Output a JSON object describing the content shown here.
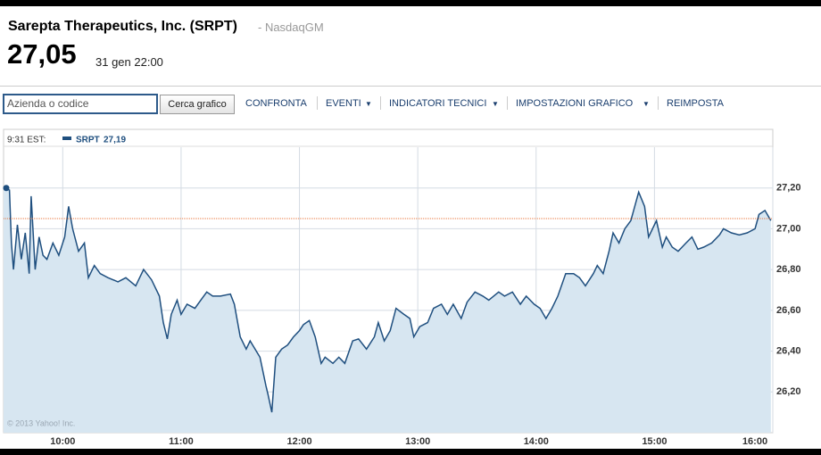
{
  "header": {
    "title": "Sarepta Therapeutics, Inc. (SRPT)",
    "exchange": "- NasdaqGM",
    "price": "27,05",
    "time": "31 gen 22:00"
  },
  "toolbar": {
    "search_placeholder": "Azienda o codice",
    "button": "Cerca grafico",
    "links": [
      "CONFRONTA",
      "EVENTI",
      "INDICATORI TECNICI",
      "IMPOSTAZIONI GRAFICO",
      "REIMPOSTA"
    ]
  },
  "chart_data": {
    "type": "line",
    "legend": {
      "time": "9:31 EST:",
      "value": "27,19"
    },
    "watermark": "© 2013 Yahoo! Inc.",
    "x": [
      "09:30",
      "09:33",
      "09:34",
      "09:35",
      "09:37",
      "09:39",
      "09:41",
      "09:43",
      "09:44",
      "09:46",
      "09:48",
      "09:50",
      "09:52",
      "09:55",
      "09:58",
      "10:01",
      "10:03",
      "10:05",
      "10:08",
      "10:11",
      "10:13",
      "10:16",
      "10:19",
      "10:23",
      "10:28",
      "10:32",
      "10:37",
      "10:41",
      "10:45",
      "10:49",
      "10:51",
      "10:53",
      "10:55",
      "10:58",
      "11:00",
      "11:03",
      "11:07",
      "11:10",
      "11:13",
      "11:16",
      "11:20",
      "11:25",
      "11:27",
      "11:30",
      "11:33",
      "11:35",
      "11:40",
      "11:43",
      "11:44",
      "11:46",
      "11:48",
      "11:51",
      "11:54",
      "11:57",
      "12:00",
      "12:02",
      "12:05",
      "12:08",
      "12:11",
      "12:13",
      "12:17",
      "12:20",
      "12:23",
      "12:27",
      "12:30",
      "12:34",
      "12:38",
      "12:40",
      "12:43",
      "12:46",
      "12:49",
      "12:53",
      "12:56",
      "12:58",
      "13:01",
      "13:05",
      "13:08",
      "13:12",
      "13:15",
      "13:18",
      "13:22",
      "13:25",
      "13:29",
      "13:33",
      "13:36",
      "13:41",
      "13:44",
      "13:48",
      "13:52",
      "13:55",
      "13:59",
      "14:02",
      "14:05",
      "14:08",
      "14:11",
      "14:15",
      "14:19",
      "14:22",
      "14:25",
      "14:29",
      "14:31",
      "14:34",
      "14:37",
      "14:39",
      "14:42",
      "14:45",
      "14:48",
      "14:52",
      "14:55",
      "14:57",
      "15:01",
      "15:04",
      "15:06",
      "15:09",
      "15:12",
      "15:16",
      "15:19",
      "15:22",
      "15:25",
      "15:29",
      "15:33",
      "15:35",
      "15:39",
      "15:43",
      "15:47",
      "15:51",
      "15:53",
      "15:56",
      "15:59"
    ],
    "series": [
      {
        "name": "SRPT",
        "color": "#1f4f7f",
        "fill": "#d7e6f1",
        "values": [
          27.2,
          27.19,
          26.93,
          26.8,
          27.02,
          26.85,
          26.98,
          26.78,
          27.16,
          26.8,
          26.96,
          26.87,
          26.85,
          26.93,
          26.87,
          26.96,
          27.11,
          27.0,
          26.89,
          26.93,
          26.76,
          26.82,
          26.78,
          26.76,
          26.74,
          26.76,
          26.72,
          26.8,
          26.75,
          26.67,
          26.54,
          26.46,
          26.58,
          26.65,
          26.58,
          26.63,
          26.61,
          26.65,
          26.69,
          26.67,
          26.67,
          26.68,
          26.63,
          26.47,
          26.41,
          26.45,
          26.37,
          26.23,
          26.19,
          26.1,
          26.37,
          26.41,
          26.43,
          26.47,
          26.5,
          26.53,
          26.55,
          26.47,
          26.34,
          26.37,
          26.34,
          26.37,
          26.34,
          26.45,
          26.46,
          26.41,
          26.47,
          26.54,
          26.45,
          26.5,
          26.61,
          26.58,
          26.56,
          26.47,
          26.52,
          26.54,
          26.61,
          26.63,
          26.58,
          26.63,
          26.56,
          26.64,
          26.69,
          26.67,
          26.65,
          26.69,
          26.67,
          26.69,
          26.63,
          26.67,
          26.63,
          26.61,
          26.56,
          26.61,
          26.67,
          26.78,
          26.78,
          26.76,
          26.72,
          26.78,
          26.82,
          26.78,
          26.89,
          26.98,
          26.93,
          27.0,
          27.04,
          27.18,
          27.11,
          26.96,
          27.04,
          26.91,
          26.96,
          26.91,
          26.89,
          26.93,
          26.96,
          26.9,
          26.91,
          26.93,
          26.97,
          27.0,
          26.98,
          26.97,
          26.98,
          27.0,
          27.07,
          27.09,
          27.04
        ]
      }
    ],
    "ref_line": 27.05,
    "ref_color": "#e8743b",
    "xlim": [
      "09:30",
      "16:00"
    ],
    "xticks": [
      "10:00",
      "11:00",
      "12:00",
      "13:00",
      "14:00",
      "15:00",
      "16:00"
    ],
    "ylim": [
      26.0,
      27.4
    ],
    "yticks": [
      {
        "value": 26.2,
        "label": "26,20"
      },
      {
        "value": 26.4,
        "label": "26,40"
      },
      {
        "value": 26.6,
        "label": "26,60"
      },
      {
        "value": 26.8,
        "label": "26,80"
      },
      {
        "value": 27.0,
        "label": "27,00"
      },
      {
        "value": 27.2,
        "label": "27,20"
      }
    ],
    "grid": true
  }
}
